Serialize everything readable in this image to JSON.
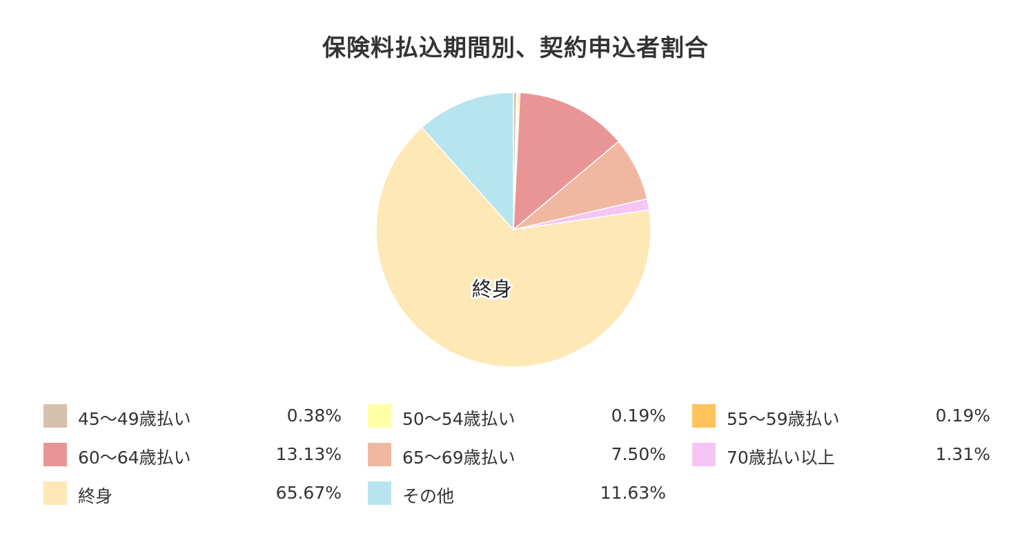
{
  "chart_data": {
    "type": "pie",
    "title": "保険料払込期間別、契約申込者割合",
    "slices": [
      {
        "name": "45～49歳払い",
        "value": 0.38,
        "value_label": "0.38%",
        "color": "#d6c1ad"
      },
      {
        "name": "50～54歳払い",
        "value": 0.19,
        "value_label": "0.19%",
        "color": "#ffffa8"
      },
      {
        "name": "55～59歳払い",
        "value": 0.19,
        "value_label": "0.19%",
        "color": "#ffc25c"
      },
      {
        "name": "60～64歳払い",
        "value": 13.13,
        "value_label": "13.13%",
        "color": "#e99596"
      },
      {
        "name": "65～69歳払い",
        "value": 7.5,
        "value_label": "7.50%",
        "color": "#f1b8a1"
      },
      {
        "name": "70歳払い以上",
        "value": 1.31,
        "value_label": "1.31%",
        "color": "#f6c4f5"
      },
      {
        "name": "終身",
        "value": 65.67,
        "value_label": "65.67%",
        "color": "#fee8b6"
      },
      {
        "name": "その他",
        "value": 11.63,
        "value_label": "11.63%",
        "color": "#b6e4ef"
      }
    ],
    "slice_labels": [
      "終身"
    ],
    "legend_position": "bottom"
  }
}
